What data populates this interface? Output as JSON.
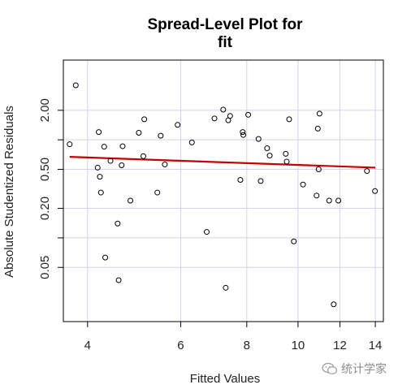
{
  "chart_data": {
    "type": "scatter",
    "title": [
      "Spread-Level Plot for",
      "fit"
    ],
    "xlabel": "Fitted Values",
    "ylabel": "Absolute Studentized Residuals",
    "x_scale": "log",
    "y_scale": "log",
    "xlim": [
      3.6,
      14.5
    ],
    "ylim": [
      0.014,
      6.5
    ],
    "x_ticks": [
      4,
      6,
      8,
      10,
      12,
      14
    ],
    "x_tick_labels": [
      "4",
      "6",
      "8",
      "10",
      "12",
      "14"
    ],
    "y_ticks": [
      0.05,
      0.2,
      0.5,
      2.0
    ],
    "y_tick_labels": [
      "0.05",
      "0.20",
      "0.50",
      "2.00"
    ],
    "y_minor_ticks": [
      0.1,
      1.0
    ],
    "grid": true,
    "points": [
      {
        "x": 3.7,
        "y": 0.9
      },
      {
        "x": 3.8,
        "y": 3.6
      },
      {
        "x": 4.18,
        "y": 0.52
      },
      {
        "x": 4.2,
        "y": 1.2
      },
      {
        "x": 4.22,
        "y": 0.42
      },
      {
        "x": 4.24,
        "y": 0.29
      },
      {
        "x": 4.3,
        "y": 0.85
      },
      {
        "x": 4.32,
        "y": 0.063
      },
      {
        "x": 4.42,
        "y": 0.61
      },
      {
        "x": 4.56,
        "y": 0.14
      },
      {
        "x": 4.58,
        "y": 0.037
      },
      {
        "x": 4.64,
        "y": 0.55
      },
      {
        "x": 4.66,
        "y": 0.86
      },
      {
        "x": 4.82,
        "y": 0.24
      },
      {
        "x": 5.0,
        "y": 1.18
      },
      {
        "x": 5.1,
        "y": 0.68
      },
      {
        "x": 5.12,
        "y": 1.62
      },
      {
        "x": 5.42,
        "y": 0.29
      },
      {
        "x": 5.5,
        "y": 1.1
      },
      {
        "x": 5.6,
        "y": 0.56
      },
      {
        "x": 5.92,
        "y": 1.42
      },
      {
        "x": 6.3,
        "y": 0.94
      },
      {
        "x": 6.72,
        "y": 0.115
      },
      {
        "x": 6.95,
        "y": 1.65
      },
      {
        "x": 7.22,
        "y": 2.03
      },
      {
        "x": 7.3,
        "y": 0.031
      },
      {
        "x": 7.38,
        "y": 1.58
      },
      {
        "x": 7.44,
        "y": 1.75
      },
      {
        "x": 7.78,
        "y": 0.39
      },
      {
        "x": 7.86,
        "y": 1.2
      },
      {
        "x": 7.88,
        "y": 1.12
      },
      {
        "x": 8.05,
        "y": 1.8
      },
      {
        "x": 8.42,
        "y": 1.02
      },
      {
        "x": 8.5,
        "y": 0.38
      },
      {
        "x": 8.74,
        "y": 0.82
      },
      {
        "x": 8.84,
        "y": 0.69
      },
      {
        "x": 9.48,
        "y": 0.72
      },
      {
        "x": 9.52,
        "y": 0.6
      },
      {
        "x": 9.62,
        "y": 1.62
      },
      {
        "x": 9.82,
        "y": 0.092
      },
      {
        "x": 10.22,
        "y": 0.35
      },
      {
        "x": 10.84,
        "y": 0.27
      },
      {
        "x": 10.9,
        "y": 1.3
      },
      {
        "x": 10.94,
        "y": 0.5
      },
      {
        "x": 10.98,
        "y": 1.85
      },
      {
        "x": 11.45,
        "y": 0.24
      },
      {
        "x": 11.68,
        "y": 0.021
      },
      {
        "x": 11.92,
        "y": 0.24
      },
      {
        "x": 13.5,
        "y": 0.48
      },
      {
        "x": 13.98,
        "y": 0.3
      }
    ],
    "trend_line": {
      "x": [
        3.7,
        14.0
      ],
      "y": [
        0.67,
        0.52
      ],
      "color": "#c40000"
    },
    "point_color": "#000000"
  },
  "watermark": {
    "text": "统计学家"
  }
}
